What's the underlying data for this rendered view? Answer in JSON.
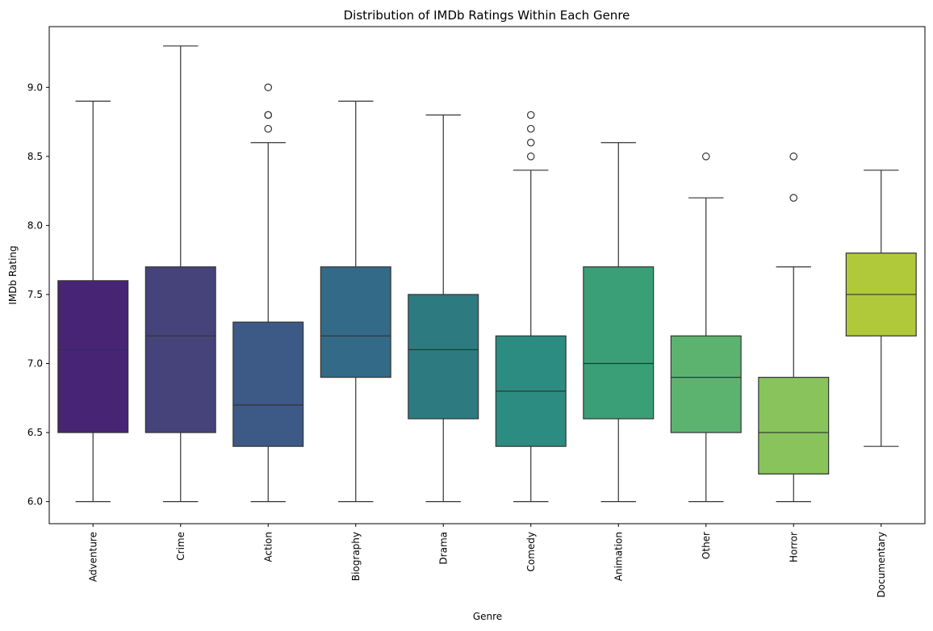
{
  "chart_data": {
    "type": "box",
    "title": "Distribution of IMDb Ratings Within Each Genre",
    "xlabel": "Genre",
    "ylabel": "IMDb Rating",
    "ylim": [
      5.84,
      9.44
    ],
    "yticks": [
      "6.0",
      "6.5",
      "7.0",
      "7.5",
      "8.0",
      "8.5",
      "9.0"
    ],
    "grid": false,
    "legend": "none",
    "categories": [
      "Adventure",
      "Crime",
      "Action",
      "Biography",
      "Drama",
      "Comedy",
      "Animation",
      "Other",
      "Horror",
      "Documentary"
    ],
    "boxes": [
      {
        "category": "Adventure",
        "whisker_low": 6.0,
        "q1": 6.5,
        "median": 7.1,
        "q3": 7.6,
        "whisker_high": 8.9,
        "outliers": [],
        "color": "#482475"
      },
      {
        "category": "Crime",
        "whisker_low": 6.0,
        "q1": 6.5,
        "median": 7.2,
        "q3": 7.7,
        "whisker_high": 9.3,
        "outliers": [],
        "color": "#46437b"
      },
      {
        "category": "Action",
        "whisker_low": 6.0,
        "q1": 6.4,
        "median": 6.7,
        "q3": 7.3,
        "whisker_high": 8.6,
        "outliers": [
          8.7,
          8.8,
          8.8,
          9.0
        ],
        "color": "#3d5a87"
      },
      {
        "category": "Biography",
        "whisker_low": 6.0,
        "q1": 6.9,
        "median": 7.2,
        "q3": 7.7,
        "whisker_high": 8.9,
        "outliers": [],
        "color": "#336a87"
      },
      {
        "category": "Drama",
        "whisker_low": 6.0,
        "q1": 6.6,
        "median": 7.1,
        "q3": 7.5,
        "whisker_high": 8.8,
        "outliers": [],
        "color": "#2e7a81"
      },
      {
        "category": "Comedy",
        "whisker_low": 6.0,
        "q1": 6.4,
        "median": 6.8,
        "q3": 7.2,
        "whisker_high": 8.4,
        "outliers": [
          8.5,
          8.6,
          8.7,
          8.8
        ],
        "color": "#2c8c81"
      },
      {
        "category": "Animation",
        "whisker_low": 6.0,
        "q1": 6.6,
        "median": 7.0,
        "q3": 7.7,
        "whisker_high": 8.6,
        "outliers": [],
        "color": "#3a9f77"
      },
      {
        "category": "Other",
        "whisker_low": 6.0,
        "q1": 6.5,
        "median": 6.9,
        "q3": 7.2,
        "whisker_high": 8.2,
        "outliers": [
          8.5
        ],
        "color": "#5cb370"
      },
      {
        "category": "Horror",
        "whisker_low": 6.0,
        "q1": 6.2,
        "median": 6.5,
        "q3": 6.9,
        "whisker_high": 7.7,
        "outliers": [
          8.2,
          8.5
        ],
        "color": "#88c35b"
      },
      {
        "category": "Documentary",
        "whisker_low": 6.4,
        "q1": 7.2,
        "median": 7.5,
        "q3": 7.8,
        "whisker_high": 8.4,
        "outliers": [],
        "color": "#b0c93b"
      }
    ]
  }
}
